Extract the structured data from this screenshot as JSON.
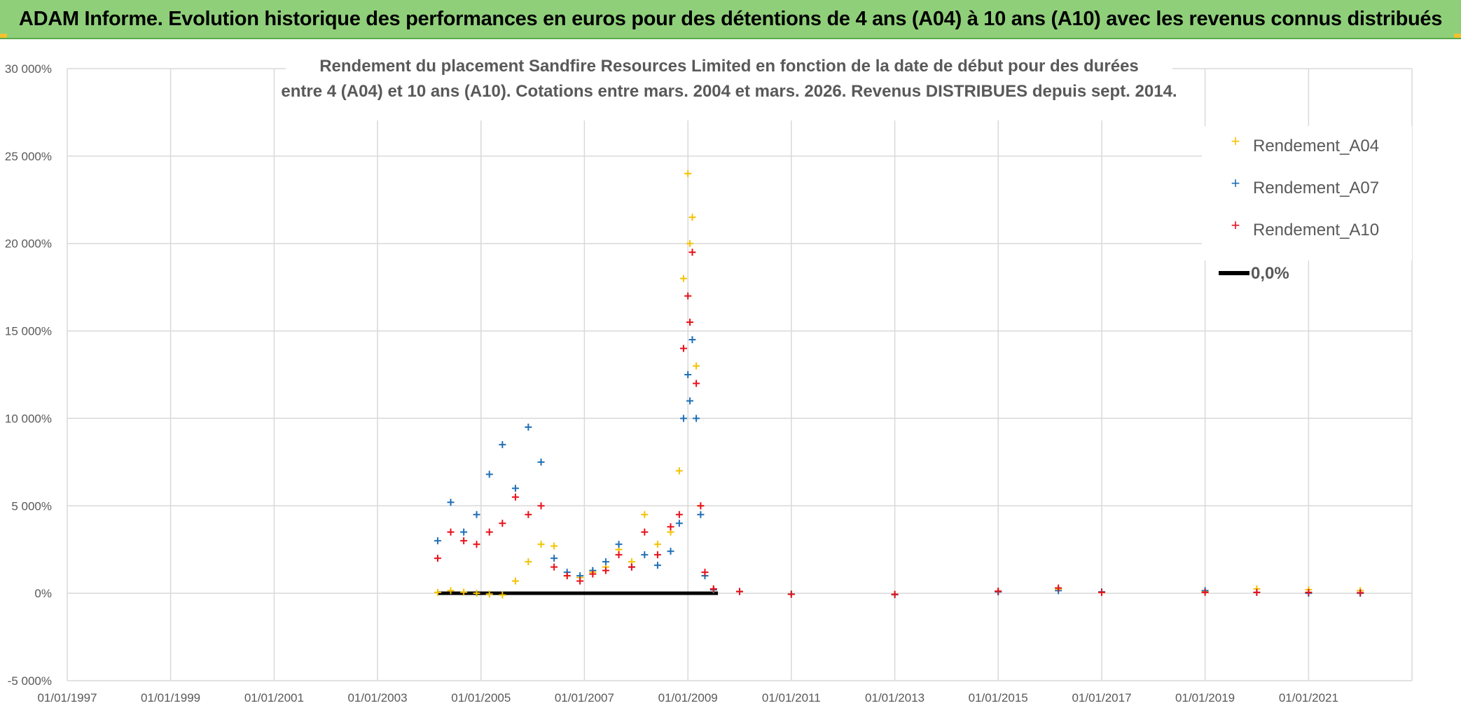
{
  "banner": {
    "title": "ADAM Informe. Evolution historique des performances en euros pour des détentions de 4 ans (A04) à 10 ans (A10) avec les revenus connus distribués"
  },
  "colors": {
    "banner_bg": "#8fcf7a",
    "A04": "#f5c200",
    "A07": "#1f6fb5",
    "A10": "#e8101a",
    "zero_line": "#000000",
    "grid": "#d9d9d9"
  },
  "chart_data": {
    "type": "scatter",
    "title_lines": [
      "Rendement du placement Sandfire Resources Limited en fonction de la date de début pour des durées",
      "entre 4 (A04) et 10 ans (A10). Cotations entre mars. 2004 et mars. 2026. Revenus DISTRIBUES depuis sept. 2014."
    ],
    "xlabel": "",
    "ylabel": "",
    "x_axis": {
      "type": "date",
      "min": "1997-01-01",
      "max": "2023-01-01",
      "tick_labels": [
        "01/01/1997",
        "01/01/1999",
        "01/01/2001",
        "01/01/2003",
        "01/01/2005",
        "01/01/2007",
        "01/01/2009",
        "01/01/2011",
        "01/01/2013",
        "01/01/2015",
        "01/01/2017",
        "01/01/2019",
        "01/01/2021"
      ]
    },
    "y_axis": {
      "min": -5000,
      "max": 30000,
      "unit": "%",
      "tick_values": [
        -5000,
        0,
        5000,
        10000,
        15000,
        20000,
        25000,
        30000
      ],
      "tick_labels": [
        "-5 000%",
        "0%",
        "5 000%",
        "10 000%",
        "15 000%",
        "20 000%",
        "25 000%",
        "30 000%"
      ]
    },
    "grid": true,
    "legend_position": "top-right",
    "legend": [
      "Rendement_A04",
      "Rendement_A07",
      "Rendement_A10",
      "0,0%"
    ],
    "series": [
      {
        "name": "Rendement_A04",
        "marker": "+",
        "points": [
          [
            "2004-03-01",
            50
          ],
          [
            "2004-06-01",
            150
          ],
          [
            "2004-09-01",
            60
          ],
          [
            "2004-12-01",
            0
          ],
          [
            "2005-03-01",
            -50
          ],
          [
            "2005-06-01",
            -100
          ],
          [
            "2005-09-01",
            700
          ],
          [
            "2005-12-01",
            1800
          ],
          [
            "2006-03-01",
            2800
          ],
          [
            "2006-06-01",
            2700
          ],
          [
            "2006-09-01",
            1000
          ],
          [
            "2006-12-01",
            900
          ],
          [
            "2007-03-01",
            1200
          ],
          [
            "2007-06-01",
            1500
          ],
          [
            "2007-09-01",
            2500
          ],
          [
            "2007-12-01",
            1800
          ],
          [
            "2008-03-01",
            4500
          ],
          [
            "2008-06-01",
            2800
          ],
          [
            "2008-09-01",
            3500
          ],
          [
            "2008-11-01",
            7000
          ],
          [
            "2008-12-01",
            18000
          ],
          [
            "2009-01-01",
            24000
          ],
          [
            "2009-01-15",
            20000
          ],
          [
            "2009-02-01",
            21500
          ],
          [
            "2009-03-01",
            13000
          ],
          [
            "2009-04-01",
            5000
          ],
          [
            "2009-05-01",
            1000
          ],
          [
            "2009-07-01",
            200
          ],
          [
            "2010-01-01",
            100
          ],
          [
            "2011-01-01",
            -50
          ],
          [
            "2013-01-01",
            -80
          ],
          [
            "2015-01-01",
            100
          ],
          [
            "2016-03-01",
            250
          ],
          [
            "2017-01-01",
            50
          ],
          [
            "2019-01-01",
            100
          ],
          [
            "2020-01-01",
            250
          ],
          [
            "2021-01-01",
            200
          ],
          [
            "2022-01-01",
            150
          ]
        ]
      },
      {
        "name": "Rendement_A07",
        "marker": "+",
        "points": [
          [
            "2004-03-01",
            3000
          ],
          [
            "2004-06-01",
            5200
          ],
          [
            "2004-09-01",
            3500
          ],
          [
            "2004-12-01",
            4500
          ],
          [
            "2005-03-01",
            6800
          ],
          [
            "2005-06-01",
            8500
          ],
          [
            "2005-09-01",
            6000
          ],
          [
            "2005-12-01",
            9500
          ],
          [
            "2006-03-01",
            7500
          ],
          [
            "2006-06-01",
            2000
          ],
          [
            "2006-09-01",
            1200
          ],
          [
            "2006-12-01",
            1000
          ],
          [
            "2007-03-01",
            1300
          ],
          [
            "2007-06-01",
            1800
          ],
          [
            "2007-09-01",
            2800
          ],
          [
            "2007-12-01",
            1500
          ],
          [
            "2008-03-01",
            2200
          ],
          [
            "2008-06-01",
            1600
          ],
          [
            "2008-09-01",
            2400
          ],
          [
            "2008-11-01",
            4000
          ],
          [
            "2008-12-01",
            10000
          ],
          [
            "2009-01-01",
            12500
          ],
          [
            "2009-01-15",
            11000
          ],
          [
            "2009-02-01",
            14500
          ],
          [
            "2009-03-01",
            10000
          ],
          [
            "2009-04-01",
            4500
          ],
          [
            "2009-05-01",
            1000
          ],
          [
            "2009-07-01",
            200
          ],
          [
            "2010-01-01",
            100
          ],
          [
            "2011-01-01",
            -50
          ],
          [
            "2013-01-01",
            -80
          ],
          [
            "2015-01-01",
            80
          ],
          [
            "2016-03-01",
            150
          ],
          [
            "2017-01-01",
            80
          ],
          [
            "2019-01-01",
            150
          ],
          [
            "2020-01-01",
            50
          ],
          [
            "2021-01-01",
            0
          ],
          [
            "2022-01-01",
            0
          ]
        ]
      },
      {
        "name": "Rendement_A10",
        "marker": "+",
        "points": [
          [
            "2004-03-01",
            2000
          ],
          [
            "2004-06-01",
            3500
          ],
          [
            "2004-09-01",
            3000
          ],
          [
            "2004-12-01",
            2800
          ],
          [
            "2005-03-01",
            3500
          ],
          [
            "2005-06-01",
            4000
          ],
          [
            "2005-09-01",
            5500
          ],
          [
            "2005-12-01",
            4500
          ],
          [
            "2006-03-01",
            5000
          ],
          [
            "2006-06-01",
            1500
          ],
          [
            "2006-09-01",
            1000
          ],
          [
            "2006-12-01",
            700
          ],
          [
            "2007-03-01",
            1100
          ],
          [
            "2007-06-01",
            1300
          ],
          [
            "2007-09-01",
            2200
          ],
          [
            "2007-12-01",
            1500
          ],
          [
            "2008-03-01",
            3500
          ],
          [
            "2008-06-01",
            2200
          ],
          [
            "2008-09-01",
            3800
          ],
          [
            "2008-11-01",
            4500
          ],
          [
            "2008-12-01",
            14000
          ],
          [
            "2009-01-01",
            17000
          ],
          [
            "2009-01-15",
            15500
          ],
          [
            "2009-02-01",
            19500
          ],
          [
            "2009-03-01",
            12000
          ],
          [
            "2009-04-01",
            5000
          ],
          [
            "2009-05-01",
            1200
          ],
          [
            "2009-07-01",
            250
          ],
          [
            "2010-01-01",
            100
          ],
          [
            "2011-01-01",
            -60
          ],
          [
            "2013-01-01",
            -60
          ],
          [
            "2015-01-01",
            120
          ],
          [
            "2016-03-01",
            300
          ],
          [
            "2017-01-01",
            50
          ],
          [
            "2019-01-01",
            50
          ],
          [
            "2020-01-01",
            50
          ],
          [
            "2021-01-01",
            50
          ],
          [
            "2022-01-01",
            30
          ]
        ]
      },
      {
        "name": "0,0%",
        "type": "line",
        "points": [
          [
            "2004-03-01",
            0
          ],
          [
            "2009-08-01",
            0
          ]
        ]
      }
    ]
  }
}
